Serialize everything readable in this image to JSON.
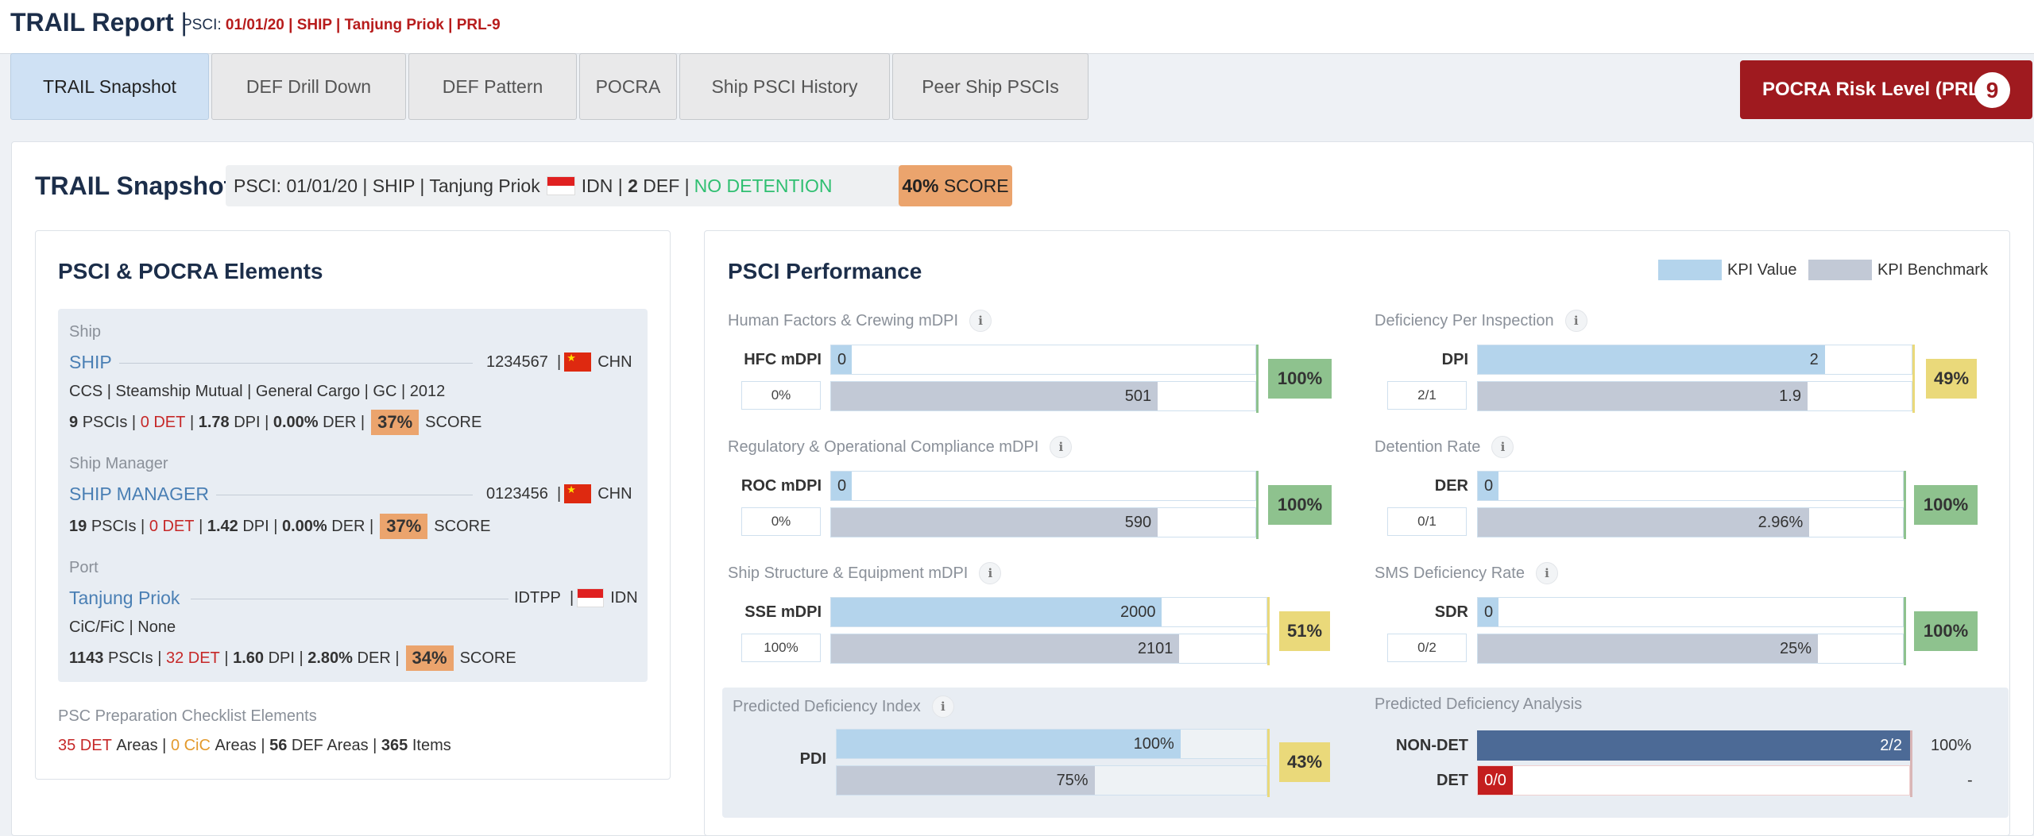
{
  "header": {
    "title": "TRAIL Report",
    "pipe": "|",
    "psci_prefix": "PSCI:",
    "psci_detail": "01/01/20 | SHIP | Tanjung Priok | PRL-9"
  },
  "tabs": [
    {
      "label": "TRAIL Snapshot",
      "active": true
    },
    {
      "label": "DEF Drill Down"
    },
    {
      "label": "DEF Pattern"
    },
    {
      "label": "POCRA"
    },
    {
      "label": "Ship PSCI History"
    },
    {
      "label": "Peer Ship PSCIs"
    }
  ],
  "prl": {
    "label": "POCRA Risk Level (PRL):",
    "value": "9"
  },
  "snapshot": {
    "title": "TRAIL Snapshot",
    "info_prefix": "PSCI: 01/01/20 | SHIP | Tanjung Priok",
    "country": "IDN",
    "sep1": "|",
    "def_count": "2",
    "def_label": "DEF |",
    "detention": "NO DETENTION",
    "score_pct": "40%",
    "score_label": "SCORE"
  },
  "elements": {
    "title": "PSCI & POCRA Elements",
    "ship": {
      "section": "Ship",
      "name": "SHIP",
      "id": "1234567",
      "sep": "|",
      "country": "CHN",
      "detail": "CCS | Steamship Mutual | General Cargo | GC | 2012",
      "pscis": "9",
      "pscis_label": "PSCIs |",
      "det": "0 DET",
      "sep_a": "|",
      "dpi": "1.78",
      "dpi_label": "DPI |",
      "der": "0.00%",
      "der_label": "DER |",
      "score": "37%",
      "score_label": "SCORE"
    },
    "manager": {
      "section": "Ship Manager",
      "name": "SHIP MANAGER",
      "id": "0123456",
      "sep": "|",
      "country": "CHN",
      "pscis": "19",
      "pscis_label": "PSCIs |",
      "det": "0 DET",
      "sep_a": "|",
      "dpi": "1.42",
      "dpi_label": "DPI |",
      "der": "0.00%",
      "der_label": "DER |",
      "score": "37%",
      "score_label": "SCORE"
    },
    "port": {
      "section": "Port",
      "name": "Tanjung Priok",
      "id": "IDTPP",
      "sep": "|",
      "country": "IDN",
      "detail": "CiC/FiC | None",
      "pscis": "1143",
      "pscis_label": "PSCIs |",
      "det": "32 DET",
      "sep_a": "|",
      "dpi": "1.60",
      "dpi_label": "DPI |",
      "der": "2.80%",
      "der_label": "DER |",
      "score": "34%",
      "score_label": "SCORE"
    },
    "checklist": {
      "title": "PSC Preparation Checklist Elements",
      "det": "35 DET",
      "det_label": "Areas |",
      "cic": "0 CiC",
      "cic_label": "Areas |",
      "def": "56",
      "def_label": "DEF Areas |",
      "items": "365",
      "items_label": "Items"
    }
  },
  "performance": {
    "title": "PSCI Performance",
    "legend_value": "KPI Value",
    "legend_benchmark": "KPI Benchmark",
    "colors": {
      "value": "#b4d4ec",
      "benchmark": "#c2c9d6",
      "good": "#8ec28e",
      "warn": "#ead97a"
    },
    "hfc": {
      "title": "Human Factors & Crewing mDPI",
      "label": "HFC mDPI",
      "ratio": "0%",
      "value": "0",
      "benchmark": "501",
      "pct": "100%",
      "value_frac": 0.0,
      "benchmark_frac": 0.77
    },
    "dpi": {
      "title": "Deficiency Per Inspection",
      "label": "DPI",
      "ratio": "2/1",
      "value": "2",
      "benchmark": "1.9",
      "pct": "49%",
      "value_frac": 0.8,
      "benchmark_frac": 0.76
    },
    "roc": {
      "title": "Regulatory & Operational Compliance mDPI",
      "label": "ROC mDPI",
      "ratio": "0%",
      "value": "0",
      "benchmark": "590",
      "pct": "100%",
      "value_frac": 0.0,
      "benchmark_frac": 0.77
    },
    "der": {
      "title": "Detention Rate",
      "label": "DER",
      "ratio": "0/1",
      "value": "0",
      "benchmark": "2.96%",
      "pct": "100%",
      "value_frac": 0.0,
      "benchmark_frac": 0.78
    },
    "sse": {
      "title": "Ship Structure & Equipment mDPI",
      "label": "SSE mDPI",
      "ratio": "100%",
      "value": "2000",
      "benchmark": "2101",
      "pct": "51%",
      "value_frac": 0.76,
      "benchmark_frac": 0.8
    },
    "sdr": {
      "title": "SMS Deficiency Rate",
      "label": "SDR",
      "ratio": "0/2",
      "value": "0",
      "benchmark": "25%",
      "pct": "100%",
      "value_frac": 0.0,
      "benchmark_frac": 0.8
    },
    "pdi": {
      "title": "Predicted Deficiency Index",
      "label": "PDI",
      "value": "100%",
      "benchmark": "75%",
      "pct": "43%",
      "value_frac": 0.8,
      "benchmark_frac": 0.6
    },
    "pda": {
      "title": "Predicted Deficiency Analysis",
      "nondet_label": "NON-DET",
      "nondet_value": "2/2",
      "nondet_pct": "100%",
      "det_label": "DET",
      "det_value": "0/0",
      "det_pct": "-"
    }
  }
}
